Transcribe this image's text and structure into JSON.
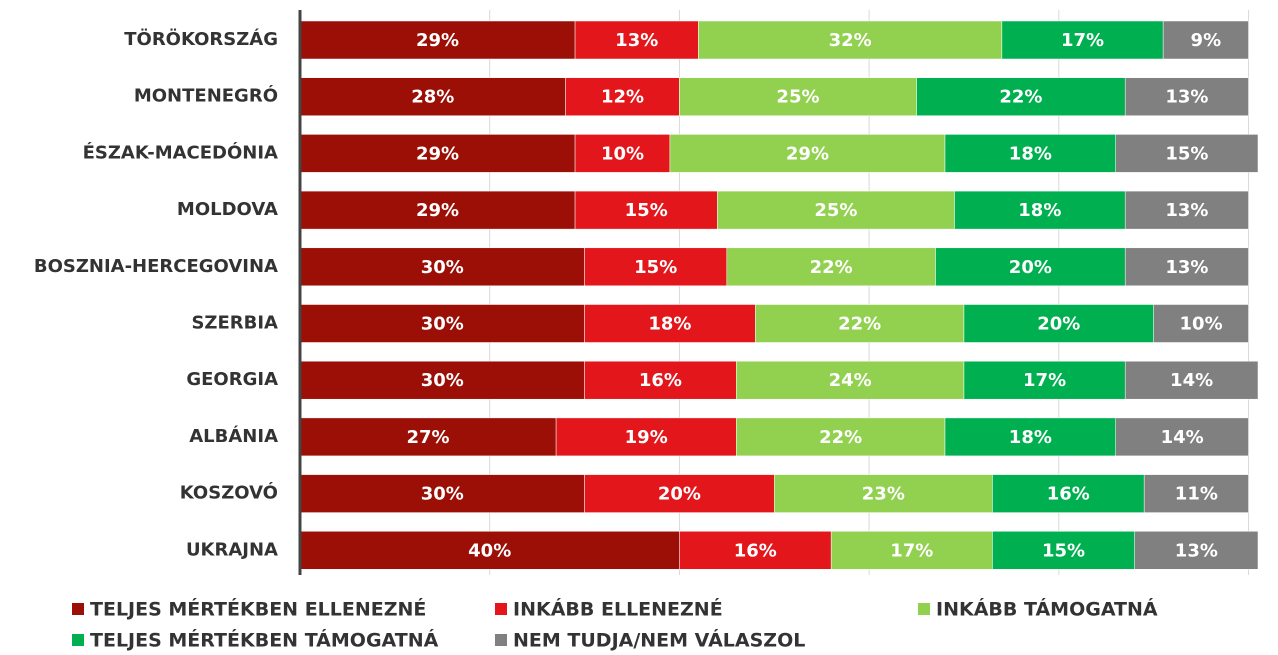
{
  "chart_data": {
    "type": "stacked_bar_horizontal",
    "categories": [
      "TÖRÖKORSZÁG",
      "MONTENEGRÓ",
      "ÉSZAK-MACEDÓNIA",
      "MOLDOVA",
      "BOSZNIA-HERCEGOVINA",
      "SZERBIA",
      "GEORGIA",
      "ALBÁNIA",
      "KOSZOVÓ",
      "UKRAJNA"
    ],
    "series": [
      {
        "name": "TELJES MÉRTÉKBEN ELLENEZNÉ",
        "color": "#9b0f06",
        "values": [
          29,
          28,
          29,
          29,
          30,
          30,
          30,
          27,
          30,
          40
        ],
        "value_labels": [
          "29%",
          "28%",
          "29%",
          "29%",
          "30%",
          "30%",
          "30%",
          "27%",
          "30%",
          "40%"
        ]
      },
      {
        "name": "INKÁBB ELLENEZNÉ",
        "color": "#e2161b",
        "values": [
          13,
          12,
          10,
          15,
          15,
          18,
          16,
          19,
          20,
          16
        ],
        "value_labels": [
          "13%",
          "12%",
          "10%",
          "15%",
          "15%",
          "18%",
          "16%",
          "19%",
          "20%",
          "16%"
        ]
      },
      {
        "name": "INKÁBB TÁMOGATNÁ",
        "color": "#92d050",
        "values": [
          32,
          25,
          29,
          25,
          22,
          22,
          24,
          22,
          23,
          17
        ],
        "value_labels": [
          "32%",
          "25%",
          "29%",
          "25%",
          "22%",
          "22%",
          "24%",
          "22%",
          "23%",
          "17%"
        ]
      },
      {
        "name": "TELJES MÉRTÉKBEN TÁMOGATNÁ",
        "color": "#00b050",
        "values": [
          17,
          22,
          18,
          18,
          20,
          20,
          17,
          18,
          16,
          15
        ],
        "value_labels": [
          "17%",
          "22%",
          "18%",
          "18%",
          "20%",
          "20%",
          "17%",
          "18%",
          "16%",
          "15%"
        ]
      },
      {
        "name": "NEM TUDJA/NEM VÁLASZOL",
        "color": "#808080",
        "values": [
          9,
          13,
          15,
          13,
          13,
          10,
          14,
          14,
          11,
          13
        ],
        "value_labels": [
          "9%",
          "13%",
          "15%",
          "13%",
          "13%",
          "10%",
          "14%",
          "14%",
          "11%",
          "13%"
        ]
      }
    ],
    "xlim": [
      0,
      101
    ],
    "xticks": [
      0,
      20,
      40,
      60,
      80,
      100
    ],
    "grid": true,
    "legend": "bottom"
  }
}
